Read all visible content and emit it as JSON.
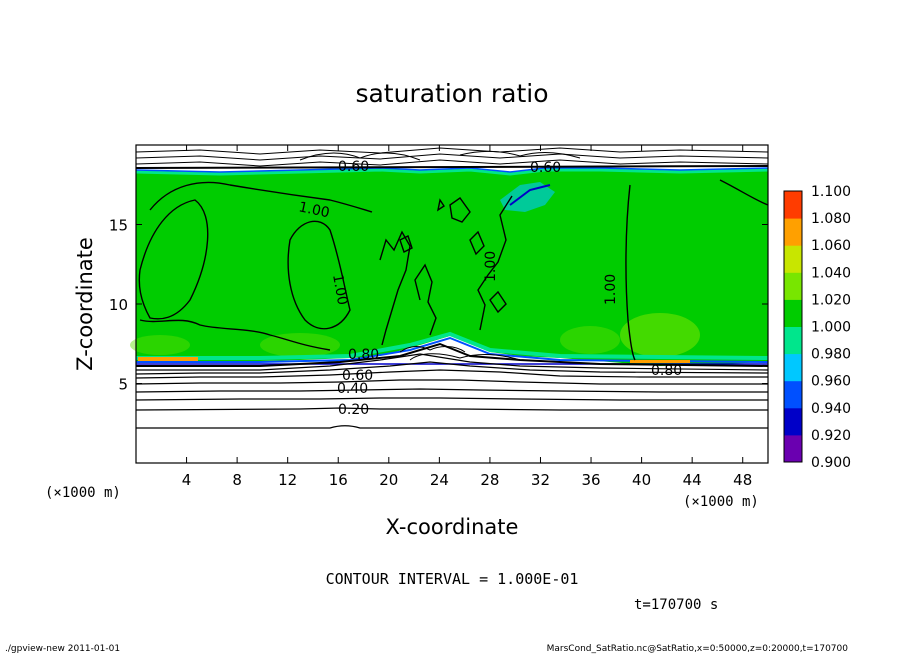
{
  "chart_data": {
    "type": "heatmap",
    "title": "saturation ratio",
    "xlabel": "X-coordinate",
    "ylabel": "Z-coordinate",
    "x_unit": "(×1000 m)",
    "y_unit": "(×1000 m)",
    "xlim": [
      0,
      50
    ],
    "ylim": [
      0,
      20
    ],
    "x_ticks": [
      4,
      8,
      12,
      16,
      20,
      24,
      28,
      32,
      36,
      40,
      44,
      48
    ],
    "y_ticks": [
      5,
      10,
      15
    ],
    "colorbar": {
      "levels": [
        0.9,
        0.92,
        0.94,
        0.96,
        0.98,
        1.0,
        1.02,
        1.04,
        1.06,
        1.08,
        1.1
      ],
      "labels": [
        "0.900",
        "0.920",
        "0.940",
        "0.960",
        "0.980",
        "1.000",
        "1.020",
        "1.040",
        "1.060",
        "1.080",
        "1.100"
      ],
      "colors": [
        "#6a00b0",
        "#0000c8",
        "#0050ff",
        "#00c8ff",
        "#00e68c",
        "#00cc00",
        "#78e600",
        "#c8e600",
        "#ffa000",
        "#ff3c00",
        "#ff8c8c"
      ]
    },
    "contour_interval_text": "CONTOUR INTERVAL = 1.000E-01",
    "contour_labels": [
      "0.60",
      "1.00",
      "1.00",
      "1.00",
      "1.00",
      "0.60",
      "0.80",
      "0.60",
      "0.40",
      "0.20",
      "0.80",
      "0.60"
    ],
    "time_label": "t=170700 s"
  },
  "footer": {
    "left": "./gpview-new   2011-01-01",
    "right": "MarsCond_SatRatio.nc@SatRatio,x=0:50000,z=0:20000,t=170700"
  },
  "colors": {
    "field_green": "#00cc00",
    "background": "#ffffff",
    "contour": "#000000"
  }
}
